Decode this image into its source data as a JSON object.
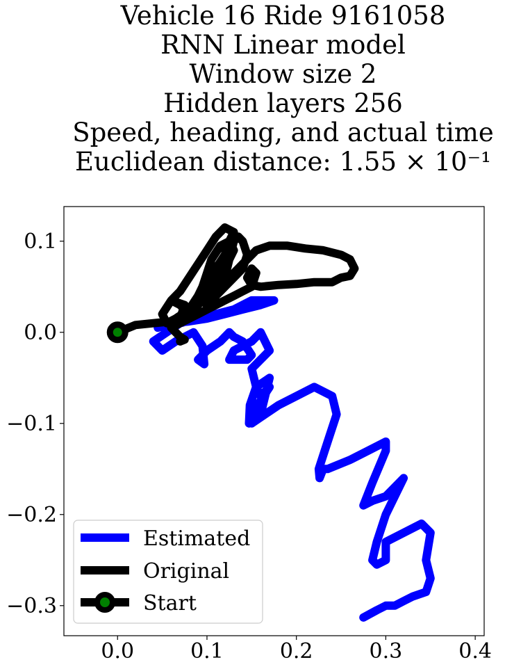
{
  "chart_data": {
    "type": "line",
    "title_lines": [
      "Vehicle 16 Ride 9161058",
      "RNN Linear model",
      "Window size 2",
      "Hidden layers 256",
      "Speed, heading, and actual time",
      "Euclidean distance: 1.55 × 10⁻¹"
    ],
    "xlabel": "",
    "ylabel": "",
    "xlim": [
      -0.06,
      0.41
    ],
    "ylim": [
      -0.333,
      0.138
    ],
    "xticks": [
      0.0,
      0.1,
      0.2,
      0.3,
      0.4
    ],
    "xtick_labels": [
      "0.0",
      "0.1",
      "0.2",
      "0.3",
      "0.4"
    ],
    "yticks": [
      0.1,
      0.0,
      -0.1,
      -0.2,
      -0.3
    ],
    "ytick_labels": [
      "0.1",
      "0.0",
      "−0.1",
      "−0.2",
      "−0.3"
    ],
    "grid": false,
    "legend_position": "lower-left",
    "series": [
      {
        "name": "Estimated",
        "color": "#0000ff",
        "x": [
          0.045,
          0.06,
          0.08,
          0.1,
          0.12,
          0.14,
          0.16,
          0.175,
          0.15,
          0.13,
          0.11,
          0.09,
          0.07,
          0.055,
          0.04,
          0.05,
          0.065,
          0.085,
          0.095,
          0.097,
          0.09,
          0.1,
          0.115,
          0.125,
          0.13,
          0.14,
          0.15,
          0.145,
          0.125,
          0.13,
          0.15,
          0.16,
          0.17,
          0.16,
          0.15,
          0.155,
          0.16,
          0.17,
          0.15,
          0.147,
          0.148,
          0.155,
          0.17,
          0.16,
          0.148,
          0.15,
          0.165,
          0.18,
          0.2,
          0.22,
          0.24,
          0.245,
          0.235,
          0.225,
          0.226,
          0.228,
          0.23,
          0.235,
          0.26,
          0.28,
          0.3,
          0.3,
          0.285,
          0.275,
          0.285,
          0.3,
          0.32,
          0.3,
          0.29,
          0.285,
          0.29,
          0.3,
          0.3,
          0.34,
          0.35,
          0.345,
          0.35,
          0.345,
          0.33,
          0.32,
          0.31,
          0.3,
          0.29,
          0.275
        ],
        "y": [
          0.005,
          0.01,
          0.012,
          0.015,
          0.02,
          0.025,
          0.03,
          0.035,
          0.035,
          0.025,
          0.02,
          0.015,
          0.01,
          0.0,
          -0.01,
          -0.02,
          -0.01,
          0.0,
          -0.015,
          -0.035,
          -0.03,
          -0.02,
          -0.01,
          0.0,
          -0.005,
          -0.01,
          -0.025,
          -0.03,
          -0.03,
          -0.02,
          -0.01,
          0.0,
          -0.02,
          -0.03,
          -0.04,
          -0.06,
          -0.07,
          -0.06,
          -0.09,
          -0.1,
          -0.08,
          -0.06,
          -0.05,
          -0.09,
          -0.09,
          -0.1,
          -0.09,
          -0.08,
          -0.07,
          -0.06,
          -0.07,
          -0.09,
          -0.12,
          -0.15,
          -0.16,
          -0.155,
          -0.15,
          -0.15,
          -0.14,
          -0.13,
          -0.12,
          -0.13,
          -0.165,
          -0.19,
          -0.185,
          -0.18,
          -0.16,
          -0.2,
          -0.23,
          -0.25,
          -0.255,
          -0.25,
          -0.23,
          -0.21,
          -0.22,
          -0.25,
          -0.27,
          -0.285,
          -0.29,
          -0.295,
          -0.3,
          -0.3,
          -0.305,
          -0.313
        ]
      },
      {
        "name": "Original",
        "color": "#000000",
        "x": [
          0.0,
          0.02,
          0.04,
          0.06,
          0.07,
          0.075,
          0.06,
          0.05,
          0.055,
          0.065,
          0.08,
          0.09,
          0.1,
          0.11,
          0.12,
          0.125,
          0.13,
          0.12,
          0.11,
          0.1,
          0.09,
          0.08,
          0.07,
          0.06,
          0.07,
          0.08,
          0.09,
          0.1,
          0.11,
          0.12,
          0.13,
          0.125,
          0.115,
          0.105,
          0.1,
          0.095,
          0.09,
          0.1,
          0.11,
          0.12,
          0.125,
          0.13,
          0.135,
          0.14,
          0.145,
          0.14,
          0.13,
          0.12,
          0.11,
          0.105,
          0.1,
          0.11,
          0.12,
          0.13,
          0.14,
          0.15,
          0.155,
          0.17,
          0.19,
          0.21,
          0.23,
          0.25,
          0.26,
          0.265,
          0.26,
          0.25,
          0.24,
          0.22,
          0.2,
          0.18,
          0.16,
          0.15,
          0.145,
          0.15,
          0.155,
          0.15,
          0.14,
          0.13,
          0.12,
          0.11,
          0.1,
          0.09,
          0.08,
          0.07,
          0.06,
          0.065,
          0.07,
          0.075,
          0.07
        ],
        "y": [
          0.0,
          0.008,
          0.01,
          0.012,
          0.015,
          0.03,
          0.035,
          0.02,
          0.01,
          0.015,
          0.025,
          0.04,
          0.055,
          0.07,
          0.085,
          0.1,
          0.11,
          0.115,
          0.105,
          0.09,
          0.075,
          0.06,
          0.045,
          0.035,
          0.03,
          0.02,
          0.03,
          0.04,
          0.055,
          0.07,
          0.09,
          0.1,
          0.095,
          0.08,
          0.065,
          0.05,
          0.04,
          0.03,
          0.04,
          0.06,
          0.08,
          0.1,
          0.105,
          0.1,
          0.085,
          0.07,
          0.06,
          0.05,
          0.04,
          0.03,
          0.035,
          0.045,
          0.055,
          0.065,
          0.075,
          0.085,
          0.09,
          0.095,
          0.095,
          0.092,
          0.09,
          0.085,
          0.08,
          0.07,
          0.062,
          0.06,
          0.055,
          0.055,
          0.053,
          0.052,
          0.05,
          0.052,
          0.06,
          0.07,
          0.065,
          0.05,
          0.045,
          0.04,
          0.035,
          0.03,
          0.025,
          0.02,
          0.015,
          0.01,
          0.005,
          0.0,
          -0.005,
          -0.008,
          -0.01
        ]
      }
    ],
    "start_point": {
      "name": "Start",
      "x": 0.0,
      "y": 0.0,
      "marker_color": "#008000",
      "edge_color": "#000000"
    },
    "legend": [
      "Estimated",
      "Original",
      "Start"
    ]
  }
}
